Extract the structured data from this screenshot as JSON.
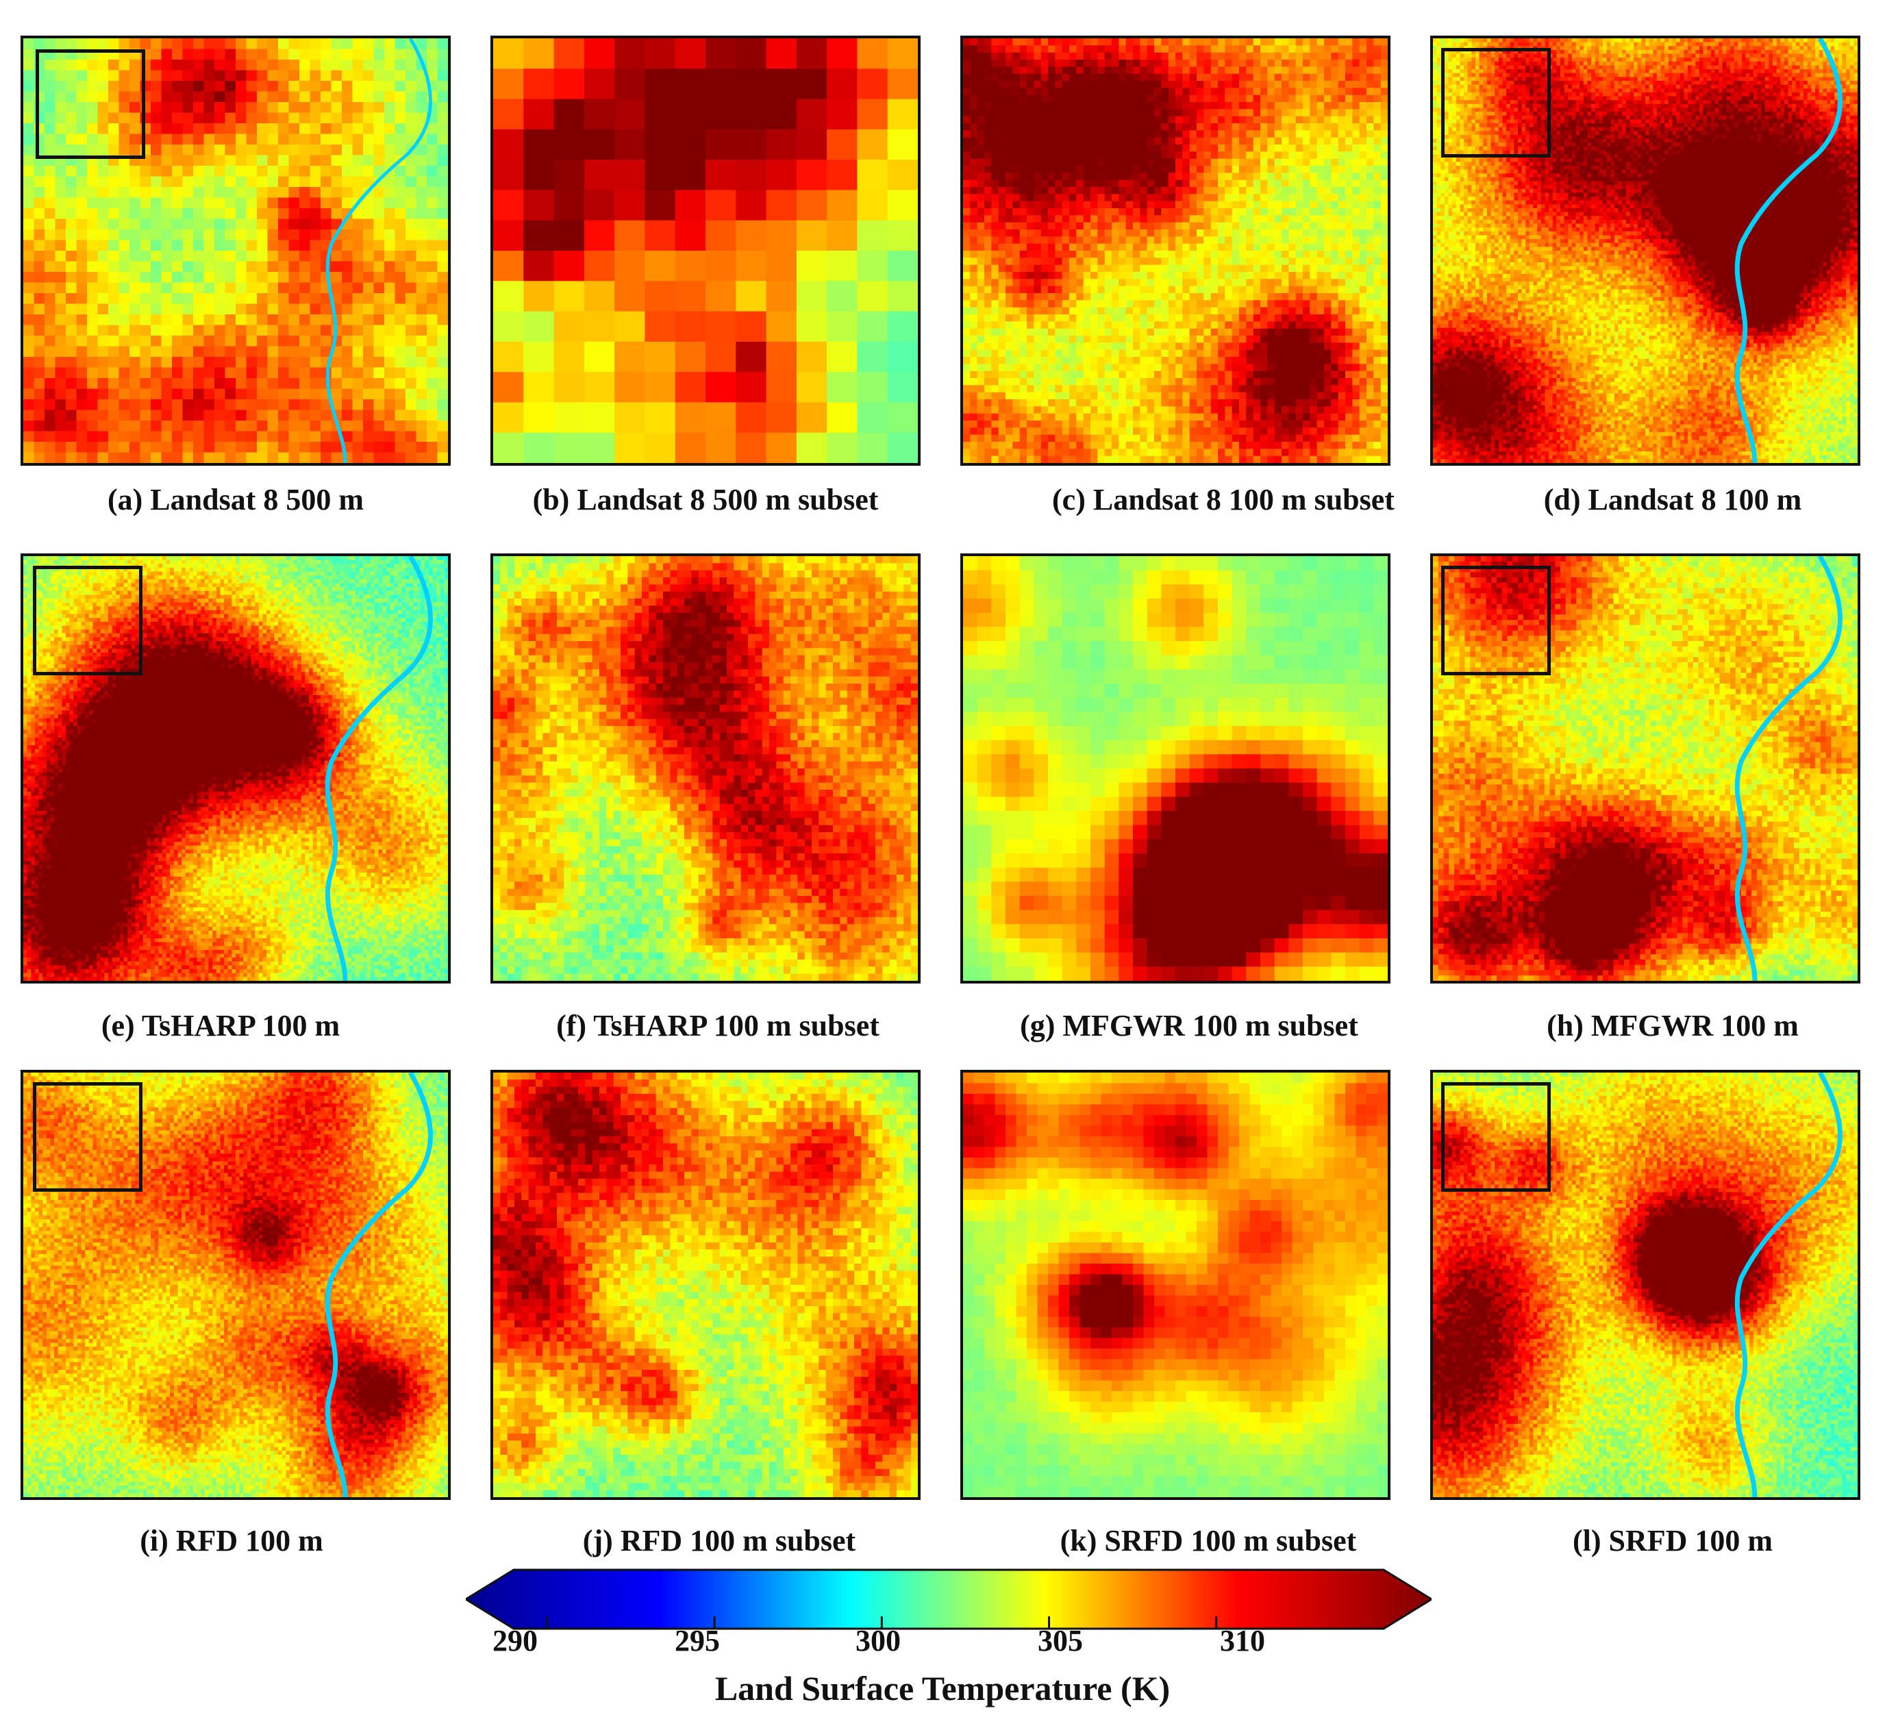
{
  "panels": [
    {
      "id": "a",
      "caption": "(a) Landsat 8 500 m",
      "style": "full",
      "res": 40,
      "river": true,
      "inset": true
    },
    {
      "id": "b",
      "caption": "(b) Landsat 8 500 m subset",
      "style": "subset",
      "res": 14,
      "river": false,
      "inset": false
    },
    {
      "id": "c",
      "caption": "(c) Landsat 8 100 m subset",
      "style": "subset-hot",
      "res": 60,
      "river": false,
      "inset": false
    },
    {
      "id": "d",
      "caption": "(d) Landsat 8 100 m",
      "style": "full-hot",
      "res": 110,
      "river": true,
      "inset": true
    },
    {
      "id": "e",
      "caption": "(e) TsHARP 100 m",
      "style": "full",
      "res": 110,
      "river": true,
      "inset": true
    },
    {
      "id": "f",
      "caption": "(f) TsHARP 100 m subset",
      "style": "subset",
      "res": 60,
      "river": false,
      "inset": false
    },
    {
      "id": "g",
      "caption": "(g) MFGWR 100 m subset",
      "style": "smooth",
      "res": 30,
      "river": false,
      "inset": false
    },
    {
      "id": "h",
      "caption": "(h) MFGWR 100 m",
      "style": "full",
      "res": 80,
      "river": true,
      "inset": true
    },
    {
      "id": "i",
      "caption": "(i) RFD 100 m",
      "style": "full",
      "res": 110,
      "river": true,
      "inset": true
    },
    {
      "id": "j",
      "caption": "(j) RFD 100 m subset",
      "style": "subset",
      "res": 60,
      "river": false,
      "inset": false
    },
    {
      "id": "k",
      "caption": "(k) SRFD 100 m subset",
      "style": "smooth",
      "res": 40,
      "river": false,
      "inset": false
    },
    {
      "id": "l",
      "caption": "(l) SRFD 100 m",
      "style": "full",
      "res": 110,
      "river": true,
      "inset": true
    }
  ],
  "colorbar": {
    "ticks": [
      "290",
      "295",
      "300",
      "305",
      "310"
    ],
    "label": "Land Surface Temperature (K)",
    "min": 289,
    "max": 315,
    "colors": [
      "#00008f",
      "#0000ff",
      "#00ffff",
      "#ffff00",
      "#ff0000",
      "#800000"
    ]
  }
}
